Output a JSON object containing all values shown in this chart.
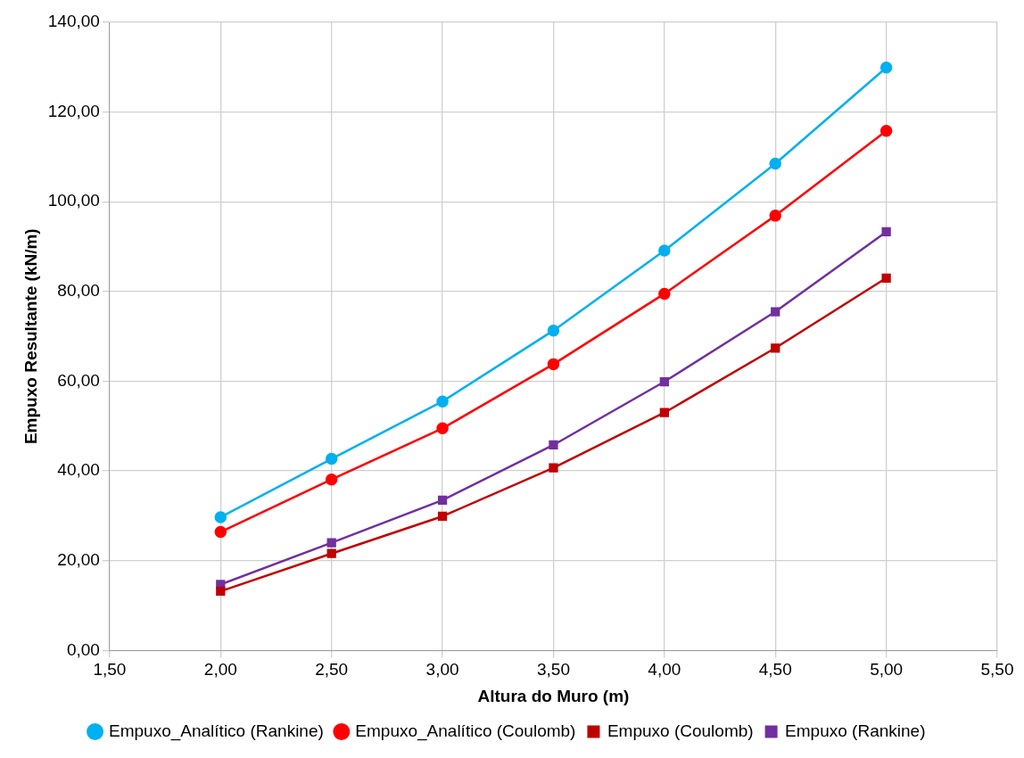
{
  "chart_data": {
    "type": "line",
    "xlabel": "Altura do Muro (m)",
    "ylabel": "Empuxo Resultante (kN/m)",
    "x": [
      2.0,
      2.5,
      3.0,
      3.5,
      4.0,
      4.5,
      5.0
    ],
    "xlim": [
      1.5,
      5.5
    ],
    "xticks": [
      {
        "value": 1.5,
        "label": "1,50"
      },
      {
        "value": 2,
        "label": "2,00"
      },
      {
        "value": 2.5,
        "label": "2,50"
      },
      {
        "value": 3,
        "label": "3,00"
      },
      {
        "value": 3.5,
        "label": "3,50"
      },
      {
        "value": 4,
        "label": "4,00"
      },
      {
        "value": 4.5,
        "label": "4,50"
      },
      {
        "value": 5,
        "label": "5,00"
      },
      {
        "value": 5.5,
        "label": "5,50"
      }
    ],
    "ylim": [
      0,
      140
    ],
    "yticks": [
      {
        "value": 0,
        "label": "0,00"
      },
      {
        "value": 20,
        "label": "20,00"
      },
      {
        "value": 40,
        "label": "40,00"
      },
      {
        "value": 60,
        "label": "60,00"
      },
      {
        "value": 80,
        "label": "80,00"
      },
      {
        "value": 100,
        "label": "100,00"
      },
      {
        "value": 120,
        "label": "120,00"
      },
      {
        "value": 140,
        "label": "140,00"
      }
    ],
    "grid": true,
    "legend": "bottom",
    "series": [
      {
        "name": "Empuxo_Analítico (Rankine)",
        "color": "#00b0f0",
        "marker": "circle",
        "values": [
          29.7,
          42.7,
          55.5,
          71.3,
          89.1,
          108.5,
          129.9
        ]
      },
      {
        "name": "Empuxo_Analítico (Coulomb)",
        "color": "#ff0000",
        "marker": "circle",
        "values": [
          26.4,
          38.1,
          49.5,
          63.8,
          79.5,
          96.9,
          115.8
        ]
      },
      {
        "name": "Empuxo (Coulomb)",
        "color": "#c00000",
        "marker": "square",
        "values": [
          13.2,
          21.6,
          29.9,
          40.7,
          53.0,
          67.4,
          83.0
        ]
      },
      {
        "name": "Empuxo (Rankine)",
        "color": "#7030a0",
        "marker": "square",
        "values": [
          14.7,
          24.0,
          33.5,
          45.8,
          59.9,
          75.5,
          93.3
        ]
      }
    ]
  }
}
